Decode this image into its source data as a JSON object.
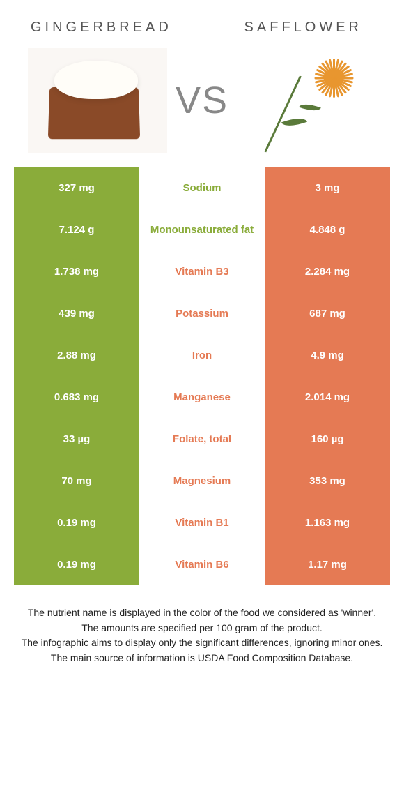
{
  "header": {
    "left_title": "GINGERBREAD",
    "right_title": "SAFFLOWER",
    "vs_label": "VS"
  },
  "colors": {
    "left_bg": "#8aac3a",
    "right_bg": "#e57a54",
    "left_text": "#8aac3a",
    "right_text": "#e57a54"
  },
  "rows": [
    {
      "left": "327 mg",
      "label": "Sodium",
      "right": "3 mg",
      "winner": "left"
    },
    {
      "left": "7.124 g",
      "label": "Monounsaturated fat",
      "right": "4.848 g",
      "winner": "left"
    },
    {
      "left": "1.738 mg",
      "label": "Vitamin B3",
      "right": "2.284 mg",
      "winner": "right"
    },
    {
      "left": "439 mg",
      "label": "Potassium",
      "right": "687 mg",
      "winner": "right"
    },
    {
      "left": "2.88 mg",
      "label": "Iron",
      "right": "4.9 mg",
      "winner": "right"
    },
    {
      "left": "0.683 mg",
      "label": "Manganese",
      "right": "2.014 mg",
      "winner": "right"
    },
    {
      "left": "33 µg",
      "label": "Folate, total",
      "right": "160 µg",
      "winner": "right"
    },
    {
      "left": "70 mg",
      "label": "Magnesium",
      "right": "353 mg",
      "winner": "right"
    },
    {
      "left": "0.19 mg",
      "label": "Vitamin B1",
      "right": "1.163 mg",
      "winner": "right"
    },
    {
      "left": "0.19 mg",
      "label": "Vitamin B6",
      "right": "1.17 mg",
      "winner": "right"
    }
  ],
  "notes": {
    "line1": "The nutrient name is displayed in the color of the food we considered as 'winner'.",
    "line2": "The amounts are specified per 100 gram of the product.",
    "line3": "The infographic aims to display only the significant differences, ignoring minor ones.",
    "line4": "The main source of information is USDA Food Composition Database."
  }
}
